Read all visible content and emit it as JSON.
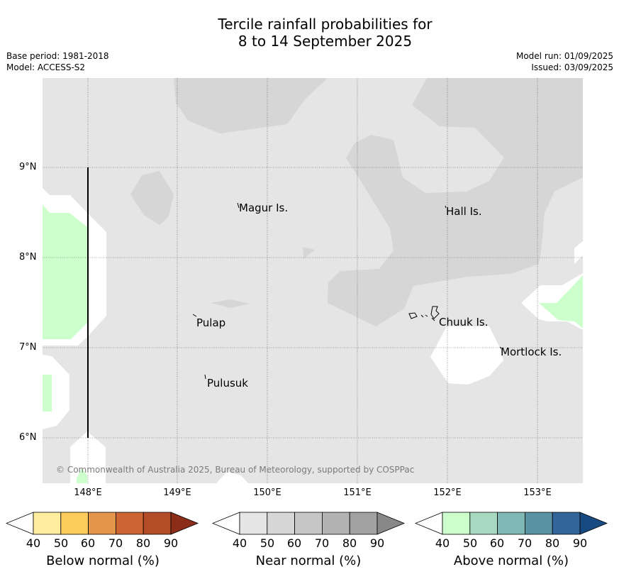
{
  "title": {
    "line1": "Tercile rainfall probabilities for",
    "line2": "8 to 14 September 2025"
  },
  "meta": {
    "base_period": "Base period: 1981-2018",
    "model": "Model: ACCESS-S2",
    "model_run": "Model run: 01/09/2025",
    "issued": "Issued: 03/09/2025"
  },
  "axes": {
    "lat_labels": [
      "9°N",
      "8°N",
      "7°N",
      "6°N"
    ],
    "lon_labels": [
      "148°E",
      "149°E",
      "150°E",
      "151°E",
      "152°E",
      "153°E"
    ]
  },
  "places": [
    {
      "name": "Magur Is."
    },
    {
      "name": "Hall Is."
    },
    {
      "name": "Pulap"
    },
    {
      "name": "Chuuk Is."
    },
    {
      "name": "Mortlock Is."
    },
    {
      "name": "Pulusuk"
    }
  ],
  "copyright": "© Commonwealth of Australia 2025, Bureau of Meteorology, supported by COSPPac",
  "legends": [
    {
      "label": "Below normal (%)",
      "ticks": [
        "40",
        "50",
        "60",
        "70",
        "80",
        "90"
      ],
      "colors": [
        "#ffffff",
        "#ffeda0",
        "#fecc5c",
        "#e3954a",
        "#cd6634",
        "#b44c27",
        "#8c2d1a"
      ]
    },
    {
      "label": "Near normal (%)",
      "ticks": [
        "40",
        "50",
        "60",
        "70",
        "80",
        "90"
      ],
      "colors": [
        "#ffffff",
        "#e5e5e5",
        "#d6d6d6",
        "#c6c6c6",
        "#b3b3b3",
        "#a2a2a2",
        "#888888"
      ]
    },
    {
      "label": "Above normal (%)",
      "ticks": [
        "40",
        "50",
        "60",
        "70",
        "80",
        "90"
      ],
      "colors": [
        "#ffffff",
        "#ccffcc",
        "#a6d9bf",
        "#7fb8b4",
        "#5b92a4",
        "#32659a",
        "#174a80"
      ]
    }
  ]
}
